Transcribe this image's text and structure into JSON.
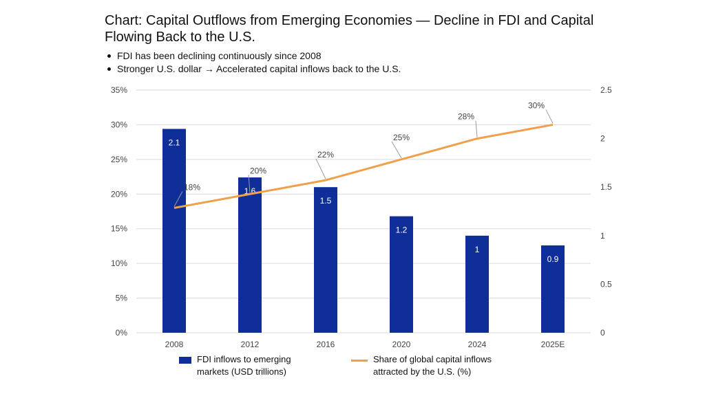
{
  "title": "Chart: Capital Outflows from Emerging Economies — Decline in FDI and Capital Flowing Back to the U.S.",
  "bullets": [
    "FDI has been declining continuously since 2008",
    "Stronger U.S. dollar → Accelerated capital inflows back to the U.S."
  ],
  "colors": {
    "bar": "#0f2e99",
    "line": "#f0a04b",
    "grid": "#d9d9d9",
    "axis_text": "#444444"
  },
  "chart_data": {
    "type": "bar+line",
    "categories": [
      "2008",
      "2012",
      "2016",
      "2020",
      "2024",
      "2025E"
    ],
    "series": [
      {
        "name": "FDI inflows to emerging\nmarkets (USD trillions)",
        "type": "bar",
        "axis": "right",
        "values": [
          2.1,
          1.6,
          1.5,
          1.2,
          1,
          0.9
        ],
        "labels": [
          "2.1",
          "1.6",
          "1.5",
          "1.2",
          "1",
          "0.9"
        ]
      },
      {
        "name": "Share of global capital inflows\nattracted by the U.S. (%)",
        "type": "line",
        "axis": "left",
        "values": [
          18,
          20,
          22,
          25,
          28,
          30
        ],
        "labels": [
          "18%",
          "20%",
          "22%",
          "25%",
          "28%",
          "30%"
        ]
      }
    ],
    "left_axis": {
      "ylim": [
        0,
        35
      ],
      "ticks": [
        0,
        5,
        10,
        15,
        20,
        25,
        30,
        35
      ],
      "tick_labels": [
        "0%",
        "5%",
        "10%",
        "15%",
        "20%",
        "25%",
        "30%",
        "35%"
      ]
    },
    "right_axis": {
      "ylim": [
        0,
        2.5
      ],
      "ticks": [
        0,
        0.5,
        1,
        1.5,
        2,
        2.5
      ],
      "tick_labels": [
        "0",
        "0.5",
        "1",
        "1.5",
        "2",
        "2.5"
      ]
    },
    "grid": true,
    "legend": "bottom"
  }
}
